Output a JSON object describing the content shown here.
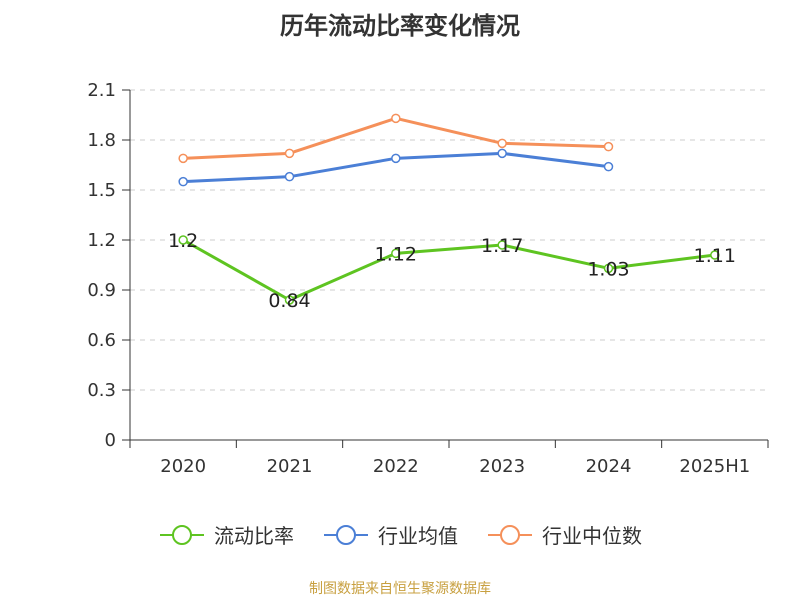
{
  "chart_data": {
    "type": "line",
    "title": "历年流动比率变化情况",
    "categories": [
      "2020",
      "2021",
      "2022",
      "2023",
      "2024",
      "2025H1"
    ],
    "ylim": [
      0,
      2.1
    ],
    "yticks": [
      "0",
      "0.3",
      "0.6",
      "0.9",
      "1.2",
      "1.5",
      "1.8",
      "2.1"
    ],
    "grid": true,
    "legend_position": "bottom",
    "series": [
      {
        "name": "流动比率",
        "color": "#5ec421",
        "values": [
          1.2,
          0.84,
          1.12,
          1.17,
          1.03,
          1.11
        ],
        "labels": [
          "1.2",
          "0.84",
          "1.12",
          "1.17",
          "1.03",
          "1.11"
        ]
      },
      {
        "name": "行业均值",
        "color": "#4b7fd6",
        "values": [
          1.55,
          1.58,
          1.69,
          1.72,
          1.64,
          null
        ]
      },
      {
        "name": "行业中位数",
        "color": "#f5905a",
        "values": [
          1.69,
          1.72,
          1.93,
          1.78,
          1.76,
          null
        ]
      }
    ]
  },
  "source": "制图数据来自恒生聚源数据库"
}
